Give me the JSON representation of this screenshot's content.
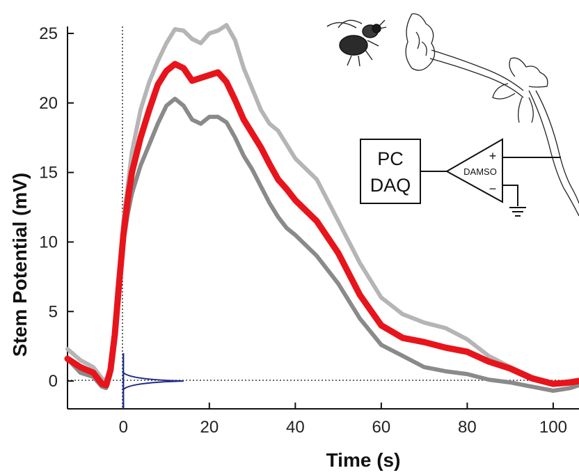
{
  "chart_data": {
    "type": "line",
    "xlabel": "Time (s)",
    "ylabel": "Stem Potential (mV)",
    "xlim": [
      -13,
      106
    ],
    "ylim": [
      -2,
      25.5
    ],
    "xticks": [
      0,
      20,
      40,
      60,
      80,
      100
    ],
    "yticks": [
      0,
      5,
      10,
      15,
      20,
      25
    ],
    "grid": false,
    "reference_lines": [
      {
        "orientation": "vertical",
        "value": 0,
        "style": "dotted"
      },
      {
        "orientation": "horizontal",
        "value": 0,
        "style": "dotted"
      }
    ],
    "series": [
      {
        "color": "#b5b5b5",
        "x": [
          -13,
          -10,
          -7,
          -5,
          -4,
          -3,
          -2,
          -1,
          0,
          1,
          2,
          4,
          6,
          8,
          10,
          12,
          14,
          16,
          18,
          20,
          22,
          24,
          26,
          28,
          30,
          32,
          34,
          36,
          38,
          40,
          45,
          50,
          55,
          60,
          65,
          70,
          75,
          80,
          85,
          90,
          95,
          100,
          104,
          106
        ],
        "y": [
          2.3,
          1.5,
          1.0,
          0.2,
          0.0,
          1.0,
          3.5,
          7.0,
          11.5,
          14.0,
          16.5,
          19.5,
          21.5,
          23.0,
          24.3,
          25.3,
          25.2,
          24.6,
          24.3,
          25.0,
          25.2,
          25.6,
          24.5,
          22.5,
          21.0,
          19.5,
          18.5,
          18.0,
          17.0,
          16.0,
          14.5,
          11.5,
          8.5,
          6.0,
          4.8,
          4.2,
          3.8,
          3.0,
          1.8,
          1.0,
          0.3,
          -0.2,
          0.0,
          0.1
        ]
      },
      {
        "color": "#8a8a8a",
        "x": [
          -13,
          -10,
          -7,
          -5,
          -4,
          -3,
          -2,
          -1,
          0,
          1,
          2,
          4,
          6,
          8,
          10,
          12,
          14,
          16,
          18,
          20,
          22,
          24,
          26,
          28,
          30,
          32,
          34,
          36,
          38,
          40,
          45,
          50,
          55,
          60,
          65,
          70,
          75,
          80,
          85,
          90,
          95,
          100,
          104,
          106
        ],
        "y": [
          1.6,
          0.6,
          0.3,
          -0.4,
          -0.5,
          0.5,
          3.0,
          6.5,
          10.0,
          12.0,
          13.5,
          15.5,
          17.0,
          18.5,
          19.8,
          20.3,
          19.8,
          18.8,
          18.5,
          19.0,
          19.0,
          18.6,
          17.5,
          16.2,
          15.2,
          14.0,
          12.8,
          11.8,
          11.0,
          10.5,
          9.0,
          7.0,
          4.5,
          2.6,
          1.8,
          1.0,
          0.7,
          0.5,
          0.1,
          -0.1,
          -0.4,
          -0.7,
          -0.5,
          -0.3
        ]
      },
      {
        "color": "#e8141b",
        "x": [
          -13,
          -10,
          -7,
          -5,
          -4,
          -3,
          -2,
          -1,
          0,
          1,
          2,
          4,
          6,
          8,
          10,
          12,
          14,
          16,
          18,
          20,
          22,
          24,
          26,
          28,
          30,
          32,
          34,
          36,
          38,
          40,
          45,
          50,
          55,
          60,
          65,
          70,
          75,
          80,
          85,
          90,
          95,
          100,
          104,
          106
        ],
        "y": [
          1.6,
          1.0,
          0.6,
          -0.2,
          -0.3,
          0.8,
          3.3,
          7.0,
          10.5,
          13.0,
          15.0,
          17.5,
          19.5,
          21.3,
          22.3,
          22.8,
          22.5,
          21.6,
          21.8,
          22.0,
          22.2,
          21.5,
          20.2,
          18.8,
          17.8,
          16.8,
          15.6,
          14.5,
          13.8,
          13.0,
          11.5,
          9.2,
          6.2,
          4.0,
          3.1,
          2.8,
          2.4,
          2.1,
          1.4,
          0.9,
          0.2,
          -0.2,
          -0.1,
          0.0
        ]
      }
    ],
    "stimulus_trace": {
      "color": "#1f2a8c",
      "x_position": 0,
      "y_range": [
        -2,
        2
      ],
      "peak_x": 14
    },
    "inset_diagram": {
      "daq_label_line1": "PC",
      "daq_label_line2": "DAQ",
      "amplifier_label": "DAMSO",
      "plus_sign": "+",
      "minus_sign": "−"
    }
  }
}
